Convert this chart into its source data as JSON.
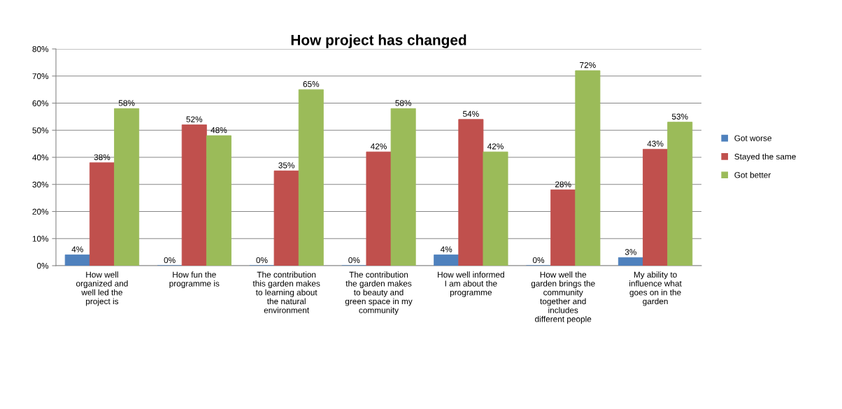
{
  "chart_data": {
    "type": "bar",
    "title": "How project has changed",
    "categories": [
      "How well organized and well led the project is",
      "How fun the programme is",
      "The contribution this garden makes to learning about the natural environment",
      "The contribution the garden makes to beauty and green space in my community",
      "How well informed I am about the programme",
      "How well the garden brings the community together and includes different people",
      "My ability to influence what goes on in the garden"
    ],
    "series": [
      {
        "name": "Got worse",
        "color": "#4f81bd",
        "values": [
          4,
          0,
          0,
          0,
          4,
          0,
          3
        ],
        "value_labels": [
          "4%",
          "0%",
          "0%",
          "0%",
          "4%",
          "0%",
          "3%"
        ]
      },
      {
        "name": "Stayed the same",
        "color": "#c0504d",
        "values": [
          38,
          52,
          35,
          42,
          54,
          28,
          43
        ],
        "value_labels": [
          "38%",
          "52%",
          "35%",
          "42%",
          "54%",
          "28%",
          "43%"
        ]
      },
      {
        "name": "Got better",
        "color": "#9bbb59",
        "values": [
          58,
          48,
          65,
          58,
          42,
          72,
          53
        ],
        "value_labels": [
          "58%",
          "48%",
          "65%",
          "58%",
          "42%",
          "72%",
          "53%"
        ]
      }
    ],
    "ylim": [
      0,
      80
    ],
    "yticks": [
      {
        "value": 0,
        "label": "0%"
      },
      {
        "value": 10,
        "label": "10%"
      },
      {
        "value": 20,
        "label": "20%"
      },
      {
        "value": 30,
        "label": "30%"
      },
      {
        "value": 40,
        "label": "40%"
      },
      {
        "value": 50,
        "label": "50%"
      },
      {
        "value": 60,
        "label": "60%"
      },
      {
        "value": 70,
        "label": "70%"
      },
      {
        "value": 80,
        "label": "80%"
      }
    ],
    "grid": "y",
    "legend": "right"
  }
}
